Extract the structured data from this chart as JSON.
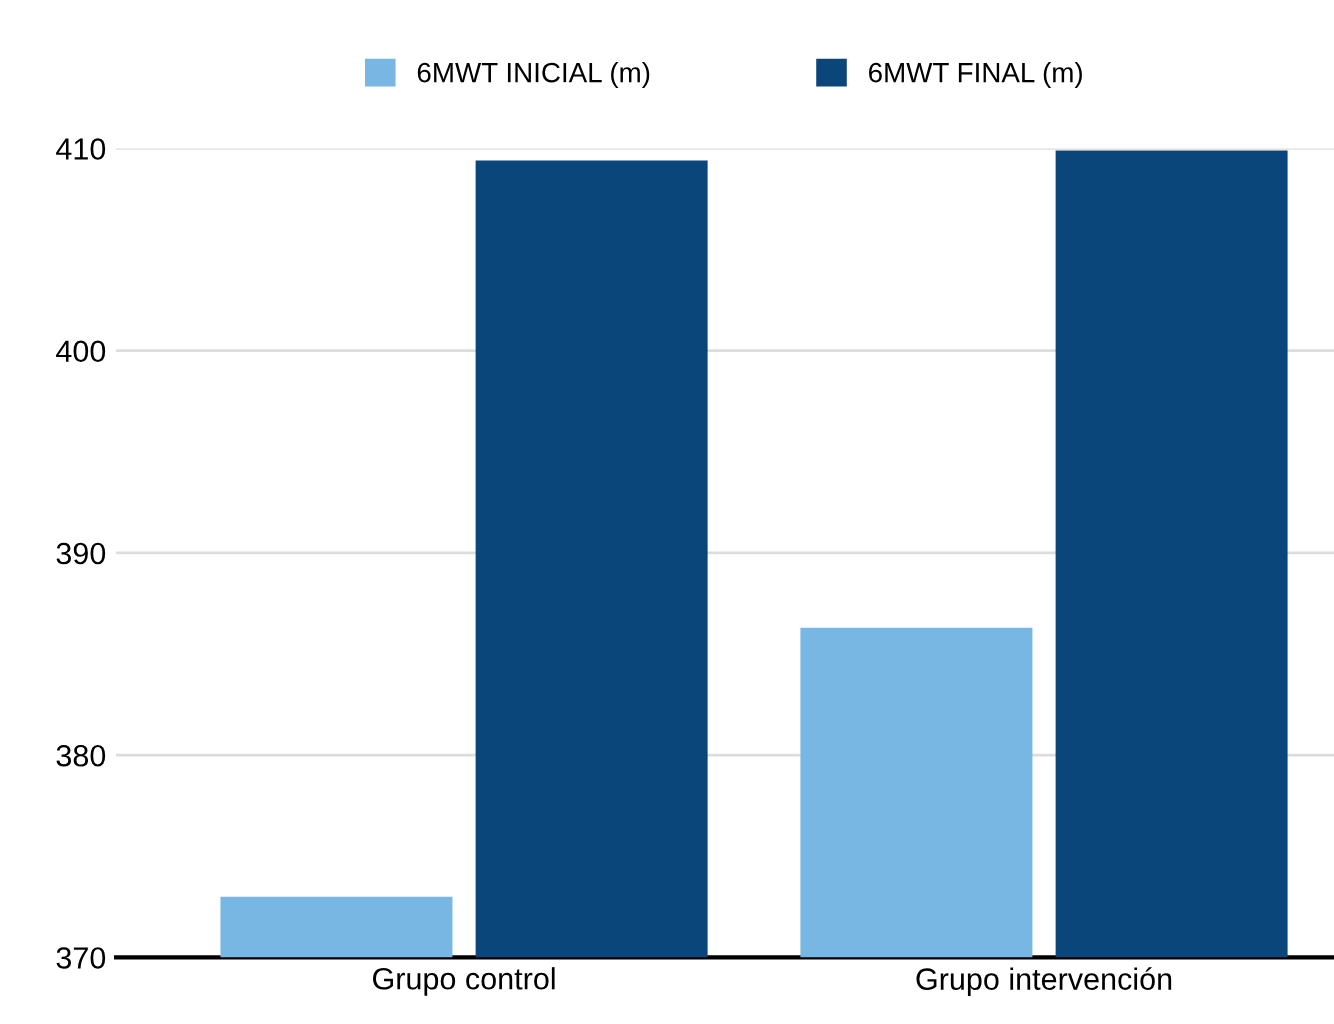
{
  "chart_data": {
    "type": "bar",
    "categories": [
      "Grupo control",
      "Grupo intervención"
    ],
    "series": [
      {
        "name": "6MWT INICIAL (m)",
        "color": "#78b6e4",
        "values": [
          373.0,
          386.3
        ]
      },
      {
        "name": "6MWT FINAL (m)",
        "color": "#0a4679",
        "values": [
          409.4,
          409.9
        ]
      }
    ],
    "ylim": [
      370,
      410
    ],
    "yticks": [
      370,
      380,
      390,
      400,
      410
    ],
    "grid": "y",
    "legend": "top"
  }
}
